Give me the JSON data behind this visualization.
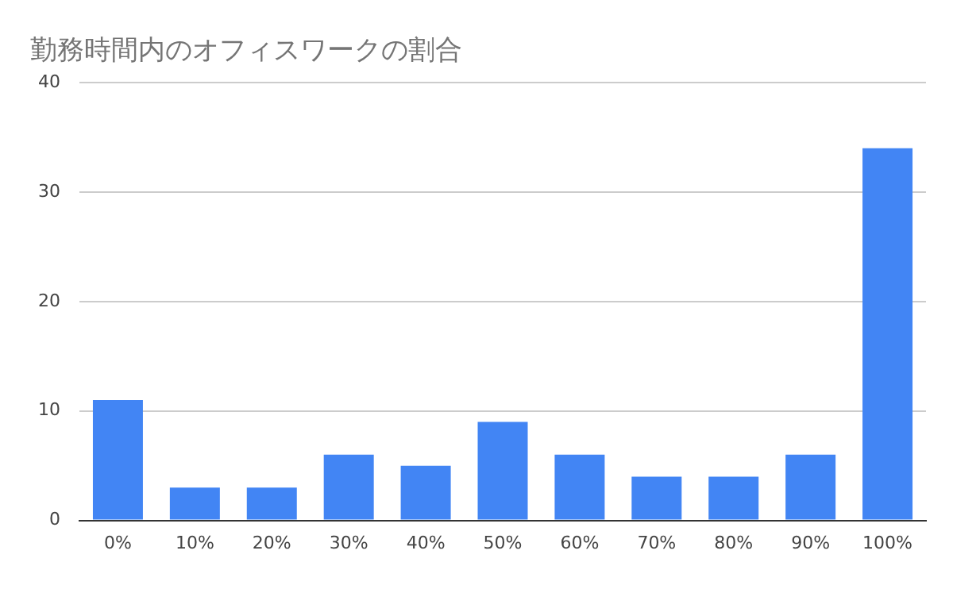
{
  "chart_data": {
    "type": "bar",
    "title": "勤務時間内のオフィスワークの割合",
    "categories": [
      "0%",
      "10%",
      "20%",
      "30%",
      "40%",
      "50%",
      "60%",
      "70%",
      "80%",
      "90%",
      "100%"
    ],
    "values": [
      11,
      3,
      3,
      6,
      5,
      9,
      6,
      4,
      4,
      6,
      34
    ],
    "color": "#4285f4",
    "ylim": [
      0,
      40
    ],
    "yticks": [
      0,
      10,
      20,
      30,
      40
    ],
    "grid": "y"
  }
}
